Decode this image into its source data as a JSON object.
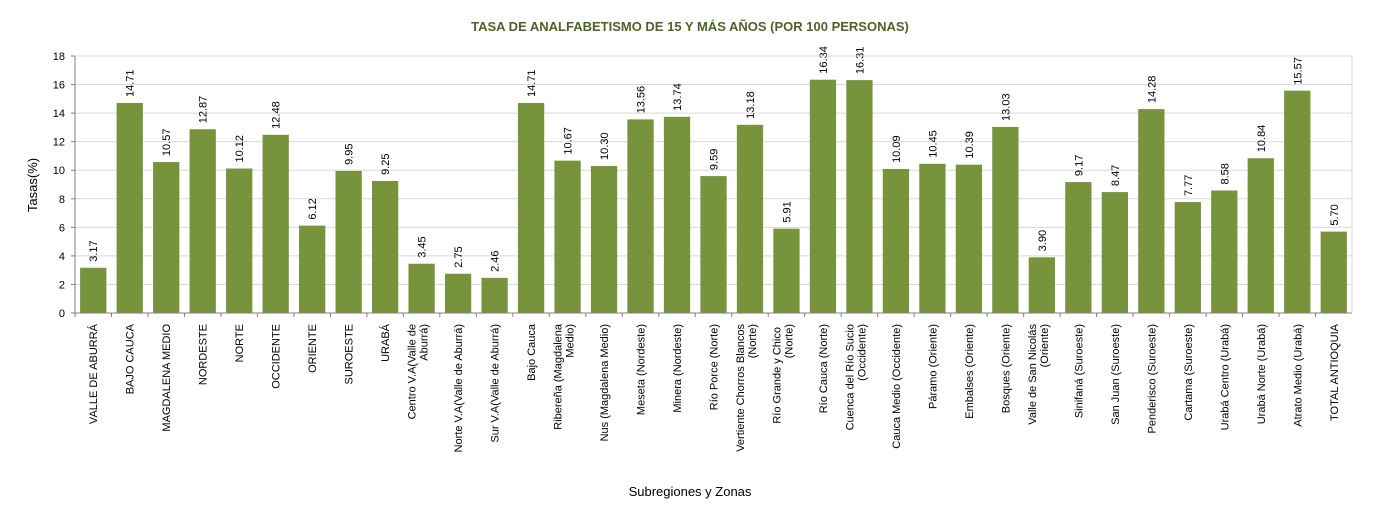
{
  "chart_data": {
    "type": "bar",
    "title": "TASA DE ANALFABETISMO DE 15 Y MÁS AÑOS (POR 100 PERSONAS)",
    "xlabel": "Subregiones y Zonas",
    "ylabel": "Tasas(%)",
    "ylim": [
      0,
      18
    ],
    "yticks": [
      0,
      2,
      4,
      6,
      8,
      10,
      12,
      14,
      16,
      18
    ],
    "grid": true,
    "bar_color": "#77933c",
    "categories": [
      "VALLE DE ABURRÁ",
      "BAJO CAUCA",
      "MAGDALENA MEDIO",
      "NORDESTE",
      "NORTE",
      "OCCIDENTE",
      "ORIENTE",
      "SUROESTE",
      "URABÁ",
      "Centro V.A(Valle de Aburrá)",
      "Norte V.A(Valle de Aburrá)",
      "Sur V.A(Valle de Aburrá)",
      "Bajo Cauca",
      "Ribereña  (Magdalena Medio)",
      "Nus  (Magdalena Medio)",
      "Meseta  (Nordeste)",
      "Minera  (Nordeste)",
      "Río Porce   (Norte)",
      "Vertiente Chorros Blancos (Norte)",
      "Río Grande y Chico  (Norte)",
      "Río Cauca  (Norte)",
      "Cuenca del Río Sucio (Occidente)",
      "Cauca Medio  (Occidente)",
      "Páramo  (Oriente)",
      "Embalses  (Oriente)",
      "Bosques  (Oriente)",
      "Valle de San Nicolás (Oriente)",
      "Sinifaná  (Suroeste)",
      "San Juan  (Suroeste)",
      "Penderisco  (Suroeste)",
      "Cartama  (Suroeste)",
      "Urabá Centro  (Urabá)",
      "Urabá Norte  (Urabá)",
      "Atrato Medio  (Urabá)",
      "TOTAL ANTIOQUIA"
    ],
    "values": [
      3.17,
      14.71,
      10.57,
      12.87,
      10.12,
      12.48,
      6.12,
      9.95,
      9.25,
      3.45,
      2.75,
      2.46,
      14.71,
      10.67,
      10.3,
      13.56,
      13.74,
      9.59,
      13.18,
      5.91,
      16.34,
      16.31,
      10.09,
      10.45,
      10.39,
      13.03,
      3.9,
      9.17,
      8.47,
      14.28,
      7.77,
      8.58,
      10.84,
      15.57,
      5.7
    ],
    "value_labels": [
      "3.17",
      "14.71",
      "10.57",
      "12.87",
      "10.12",
      "12.48",
      "6.12",
      "9.95",
      "9.25",
      "3.45",
      "2.75",
      "2.46",
      "14.71",
      "10.67",
      "10.30",
      "13.56",
      "13.74",
      "9.59",
      "13.18",
      "5.91",
      "16.34",
      "16.31",
      "10.09",
      "10.45",
      "10.39",
      "13.03",
      "3.90",
      "9.17",
      "8.47",
      "14.28",
      "7.77",
      "8.58",
      "10.84",
      "15.57",
      "5.70"
    ]
  }
}
